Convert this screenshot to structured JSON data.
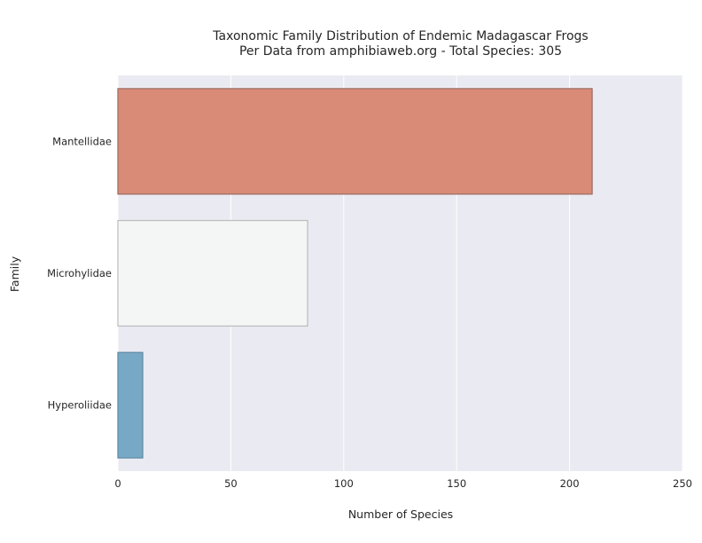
{
  "chart_data": {
    "type": "bar",
    "orientation": "horizontal",
    "title": "Taxonomic Family Distribution of Endemic Madagascar Frogs",
    "subtitle": "Per Data from amphibiaweb.org - Total Species: 305",
    "xlabel": "Number of Species",
    "ylabel": "Family",
    "categories": [
      "Mantellidae",
      "Microhylidae",
      "Hyperoliidae"
    ],
    "values": [
      210,
      84,
      11
    ],
    "xlim": [
      0,
      250
    ],
    "xticks": [
      0,
      50,
      100,
      150,
      200,
      250
    ],
    "grid": "vertical",
    "colors": [
      "#d98b78",
      "#f4f6f5",
      "#77a9c7"
    ],
    "edge_colors": [
      "#9a6a5e",
      "#bcbcbc",
      "#5f8aa3"
    ],
    "background": "#eaeaf2"
  }
}
